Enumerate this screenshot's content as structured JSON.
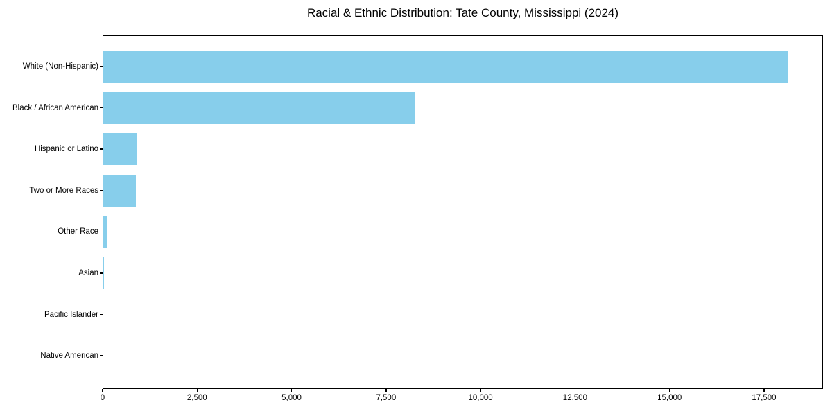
{
  "chart_data": {
    "type": "bar",
    "orientation": "horizontal",
    "title": "Racial & Ethnic Distribution: Tate County, Mississippi (2024)",
    "categories": [
      "White (Non-Hispanic)",
      "Black / African American",
      "Hispanic or Latino",
      "Two or More Races",
      "Other Race",
      "Asian",
      "Pacific Islander",
      "Native American"
    ],
    "values": [
      18150,
      8270,
      920,
      880,
      135,
      30,
      10,
      5
    ],
    "xlabel": "",
    "ylabel": "",
    "xlim": [
      0,
      19060
    ],
    "x_ticks": [
      0,
      2500,
      5000,
      7500,
      10000,
      12500,
      15000,
      17500
    ],
    "x_tick_labels": [
      "0",
      "2,500",
      "5,000",
      "7,500",
      "10,000",
      "12,500",
      "15,000",
      "17,500"
    ],
    "grid": false,
    "legend_position": "none",
    "colors": {
      "bar": "#87CEEB",
      "text": "#000000",
      "spine": "#000000",
      "background": "#ffffff"
    }
  }
}
